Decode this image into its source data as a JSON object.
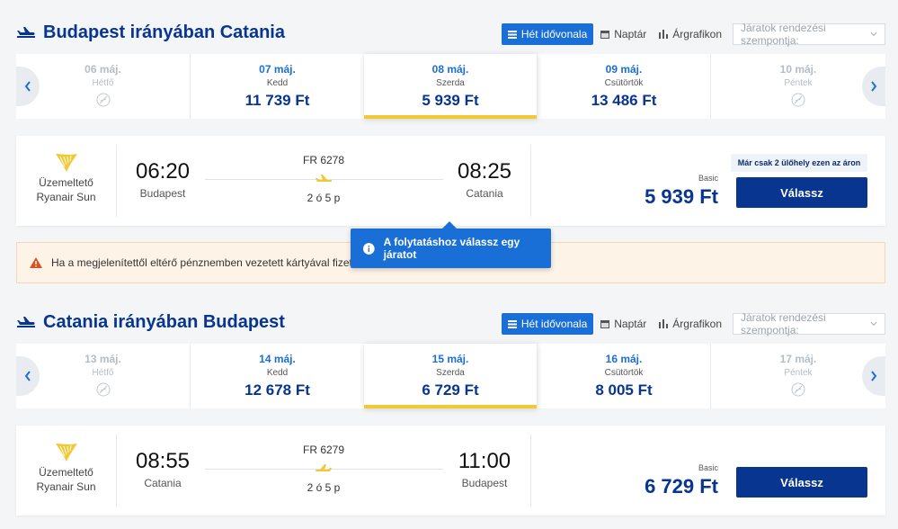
{
  "colors": {
    "primary": "#073590",
    "accent": "#1a6fd6",
    "highlight": "#f1c933",
    "warning_bg": "#fdf3e7"
  },
  "view_options": {
    "week_label": "Hét idővonala",
    "calendar_label": "Naptár",
    "chart_label": "Árgrafikon",
    "sort_placeholder": "Járatok rendezési szempontja:"
  },
  "outbound": {
    "title": "Budapest irányában Catania",
    "days": [
      {
        "date": "06 máj.",
        "weekday": "Hétfő",
        "price": ""
      },
      {
        "date": "07 máj.",
        "weekday": "Kedd",
        "price": "11 739 Ft"
      },
      {
        "date": "08 máj.",
        "weekday": "Szerda",
        "price": "5 939 Ft"
      },
      {
        "date": "09 máj.",
        "weekday": "Csütörtök",
        "price": "13 486 Ft"
      },
      {
        "date": "10 máj.",
        "weekday": "Péntek",
        "price": ""
      }
    ],
    "flight": {
      "operator_label": "Üzemeltető",
      "operator_name": "Ryanair Sun",
      "depart_time": "06:20",
      "depart_city": "Budapest",
      "flight_no": "FR 6278",
      "duration": "2 ó 5 p",
      "arrive_time": "08:25",
      "arrive_city": "Catania",
      "seats_note": "Már csak 2 ülőhely ezen az áron",
      "fare": "Basic",
      "price": "5 939 Ft",
      "select_label": "Válassz"
    }
  },
  "warning": {
    "text": "Ha a megjelenítettől eltérő pénznemben vezetett kártyával fizet, a"
  },
  "tooltip": {
    "text": "A folytatáshoz válassz egy járatot"
  },
  "inbound": {
    "title": "Catania irányában Budapest",
    "days": [
      {
        "date": "13 máj.",
        "weekday": "Hétfő",
        "price": ""
      },
      {
        "date": "14 máj.",
        "weekday": "Kedd",
        "price": "12 678 Ft"
      },
      {
        "date": "15 máj.",
        "weekday": "Szerda",
        "price": "6 729 Ft"
      },
      {
        "date": "16 máj.",
        "weekday": "Csütörtök",
        "price": "8 005 Ft"
      },
      {
        "date": "17 máj.",
        "weekday": "Péntek",
        "price": ""
      }
    ],
    "flight": {
      "operator_label": "Üzemeltető",
      "operator_name": "Ryanair Sun",
      "depart_time": "08:55",
      "depart_city": "Catania",
      "flight_no": "FR 6279",
      "duration": "2 ó 5 p",
      "arrive_time": "11:00",
      "arrive_city": "Budapest",
      "fare": "Basic",
      "price": "6 729 Ft",
      "select_label": "Válassz"
    }
  }
}
